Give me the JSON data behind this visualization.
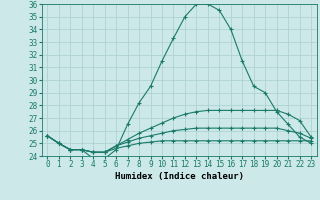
{
  "xlabel": "Humidex (Indice chaleur)",
  "ylabel": "",
  "background_color": "#cce8e8",
  "line_color": "#1a7a6a",
  "grid_color": "#aacece",
  "xlim": [
    -0.5,
    23.5
  ],
  "ylim": [
    24,
    36
  ],
  "yticks": [
    24,
    25,
    26,
    27,
    28,
    29,
    30,
    31,
    32,
    33,
    34,
    35,
    36
  ],
  "xticks": [
    0,
    1,
    2,
    3,
    4,
    5,
    6,
    7,
    8,
    9,
    10,
    11,
    12,
    13,
    14,
    15,
    16,
    17,
    18,
    19,
    20,
    21,
    22,
    23
  ],
  "series": [
    [
      25.6,
      25.0,
      24.5,
      24.5,
      23.8,
      23.8,
      24.5,
      26.5,
      28.2,
      29.5,
      31.5,
      33.3,
      35.0,
      36.0,
      36.0,
      35.5,
      34.0,
      31.5,
      29.5,
      29.0,
      27.5,
      26.5,
      25.5,
      25.0
    ],
    [
      25.6,
      25.0,
      24.5,
      24.5,
      24.3,
      24.3,
      24.8,
      25.3,
      25.8,
      26.2,
      26.6,
      27.0,
      27.3,
      27.5,
      27.6,
      27.6,
      27.6,
      27.6,
      27.6,
      27.6,
      27.6,
      27.3,
      26.8,
      25.5
    ],
    [
      25.6,
      25.0,
      24.5,
      24.5,
      24.3,
      24.3,
      24.8,
      25.1,
      25.4,
      25.6,
      25.8,
      26.0,
      26.1,
      26.2,
      26.2,
      26.2,
      26.2,
      26.2,
      26.2,
      26.2,
      26.2,
      26.0,
      25.8,
      25.4
    ],
    [
      25.6,
      25.0,
      24.5,
      24.5,
      24.3,
      24.3,
      24.6,
      24.8,
      25.0,
      25.1,
      25.2,
      25.2,
      25.2,
      25.2,
      25.2,
      25.2,
      25.2,
      25.2,
      25.2,
      25.2,
      25.2,
      25.2,
      25.2,
      25.2
    ]
  ],
  "tick_fontsize": 5.5,
  "xlabel_fontsize": 6.5
}
